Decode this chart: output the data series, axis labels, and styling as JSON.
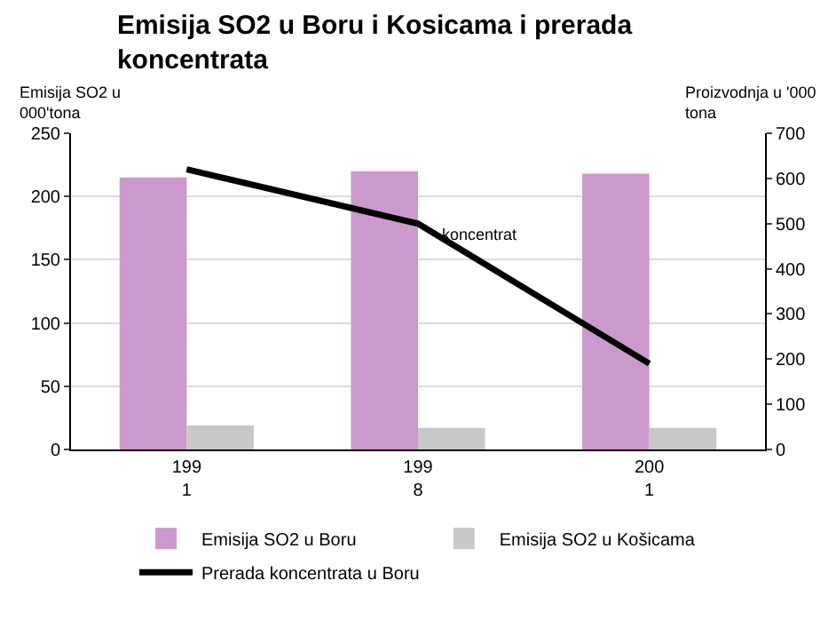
{
  "chart_data": {
    "type": "bar",
    "title": "Emisija SO2 u Boru i Kosicama i prerada koncentrata",
    "ylabel": "Emisija SO2 u 000'tona",
    "y2label": "Proizvodnja u '000 tona",
    "categories": [
      "1991",
      "1998",
      "2001"
    ],
    "series": [
      {
        "name": "Emisija SO2 u Boru",
        "color": "#cc99cc",
        "values": [
          215,
          220,
          218
        ]
      },
      {
        "name": "Emisija SO2 u Košicama",
        "color": "#c8c8c8",
        "values": [
          19,
          17,
          17
        ]
      },
      {
        "name": "Prerada koncentrata u Boru",
        "type": "line",
        "axis": "y2",
        "color": "#000000",
        "values": [
          620,
          500,
          190
        ]
      }
    ],
    "annotations": [
      "koncentrat"
    ],
    "ylim": [
      0,
      250
    ],
    "yticks": [
      0,
      50,
      100,
      150,
      200,
      250
    ],
    "y2lim": [
      0,
      700
    ],
    "y2ticks": [
      0,
      100,
      200,
      300,
      400,
      500,
      600,
      700
    ],
    "grid": "y",
    "legend": "bottom",
    "marker": "none",
    "line_style": "solid"
  }
}
